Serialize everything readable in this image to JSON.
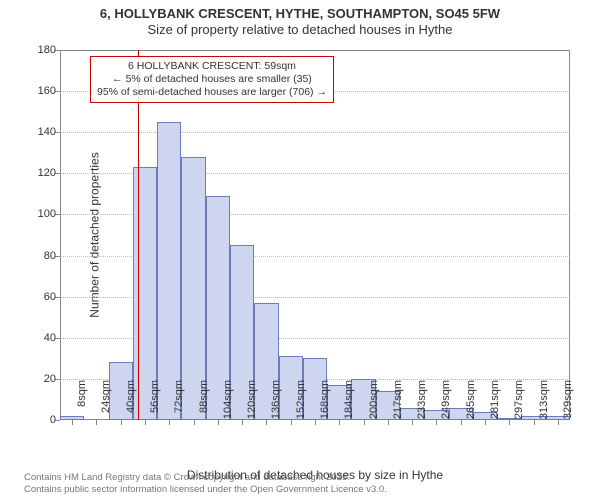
{
  "title_line1": "6, HOLLYBANK CRESCENT, HYTHE, SOUTHAMPTON, SO45 5FW",
  "title_line2": "Size of property relative to detached houses in Hythe",
  "chart": {
    "type": "histogram",
    "background_color": "#ffffff",
    "bar_fill_color": "#cdd6ee",
    "bar_border_color": "#6a7db8",
    "grid_color": "#bbbbbb",
    "axis_color": "#888888",
    "ref_line_color": "#d00000",
    "font_family": "Arial",
    "title_fontsize": 13,
    "axis_label_fontsize": 12,
    "tick_fontsize": 11,
    "annotation_fontsize": 10.5,
    "y": {
      "label": "Number of detached properties",
      "min": 0,
      "max": 180,
      "tick_step": 20
    },
    "x": {
      "label": "Distribution of detached houses by size in Hythe",
      "categories": [
        "8sqm",
        "24sqm",
        "40sqm",
        "56sqm",
        "72sqm",
        "88sqm",
        "104sqm",
        "120sqm",
        "136sqm",
        "152sqm",
        "168sqm",
        "184sqm",
        "200sqm",
        "217sqm",
        "233sqm",
        "249sqm",
        "265sqm",
        "281sqm",
        "297sqm",
        "313sqm",
        "329sqm"
      ]
    },
    "values": [
      2,
      0,
      28,
      123,
      145,
      128,
      109,
      85,
      57,
      31,
      30,
      17,
      20,
      14,
      6,
      5,
      6,
      4,
      1,
      2,
      2
    ],
    "reference": {
      "category_index": 3,
      "annotation_lines": [
        "6 HOLLYBANK CRESCENT: 59sqm",
        "← 5% of detached houses are smaller (35)",
        "95% of semi-detached houses are larger (706) →"
      ]
    }
  },
  "footer_line1": "Contains HM Land Registry data © Crown copyright and database right 2025.",
  "footer_line2": "Contains public sector information licensed under the Open Government Licence v3.0."
}
